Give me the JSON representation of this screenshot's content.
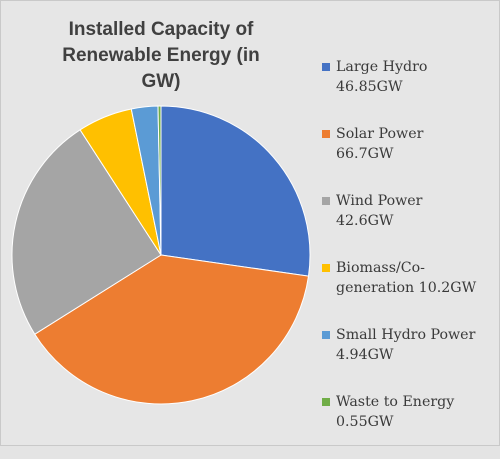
{
  "chart_data": {
    "type": "pie",
    "title": "Installed Capacity of Renewable Energy (in\nGW)",
    "unit": "GW",
    "legend_position": "right",
    "slices": [
      {
        "name": "Large Hydro",
        "value": 46.85,
        "label": "Large Hydro\n46.85GW",
        "color": "#4472c4"
      },
      {
        "name": "Solar Power",
        "value": 66.7,
        "label": "Solar Power\n66.7GW",
        "color": "#ed7d31"
      },
      {
        "name": "Wind Power",
        "value": 42.6,
        "label": "Wind Power\n42.6GW",
        "color": "#a5a5a5"
      },
      {
        "name": "Biomass/Co-generation",
        "value": 10.2,
        "label": "Biomass/Co-\ngeneration 10.2GW",
        "color": "#ffc000"
      },
      {
        "name": "Small Hydro Power",
        "value": 4.94,
        "label": "Small Hydro Power\n4.94GW",
        "color": "#5b9bd5"
      },
      {
        "name": "Waste to Energy",
        "value": 0.55,
        "label": "Waste to Energy\n0.55GW",
        "color": "#70ad47"
      }
    ]
  }
}
